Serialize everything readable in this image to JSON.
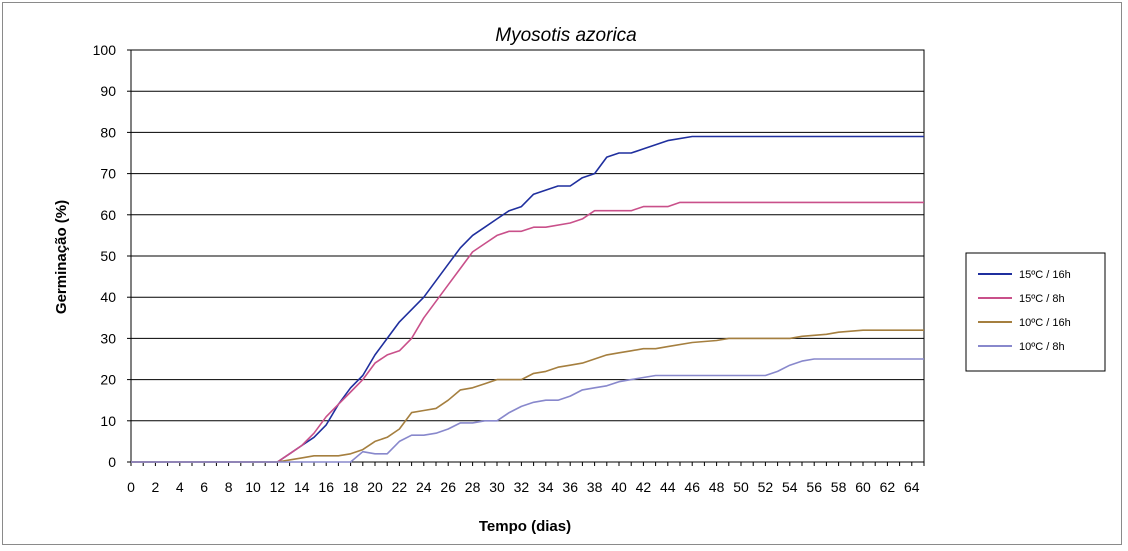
{
  "chart_data": {
    "type": "line",
    "title": "Myosotis azorica",
    "xlabel": "Tempo (dias)",
    "ylabel": "Germinação (%)",
    "xlim": [
      0,
      65
    ],
    "ylim": [
      0,
      100
    ],
    "yticks": [
      0,
      10,
      20,
      30,
      40,
      50,
      60,
      70,
      80,
      90,
      100
    ],
    "xticks": [
      0,
      2,
      4,
      6,
      8,
      10,
      12,
      14,
      16,
      18,
      20,
      22,
      24,
      26,
      28,
      30,
      32,
      34,
      36,
      38,
      40,
      42,
      44,
      46,
      48,
      50,
      52,
      54,
      56,
      58,
      60,
      62,
      64
    ],
    "grid": "horizontal",
    "legend_position": "right",
    "series": [
      {
        "name": "15ºC / 16h",
        "color": "#1f2f9e",
        "points": [
          [
            0,
            0
          ],
          [
            11,
            0
          ],
          [
            12,
            0
          ],
          [
            13,
            2
          ],
          [
            14,
            4
          ],
          [
            15,
            6
          ],
          [
            16,
            9
          ],
          [
            17,
            14
          ],
          [
            18,
            18
          ],
          [
            19,
            21
          ],
          [
            20,
            26
          ],
          [
            21,
            30
          ],
          [
            22,
            34
          ],
          [
            23,
            37
          ],
          [
            24,
            40
          ],
          [
            25,
            44
          ],
          [
            26,
            48
          ],
          [
            27,
            52
          ],
          [
            28,
            55
          ],
          [
            29,
            57
          ],
          [
            30,
            59
          ],
          [
            31,
            61
          ],
          [
            32,
            62
          ],
          [
            33,
            65
          ],
          [
            34,
            66
          ],
          [
            35,
            67
          ],
          [
            36,
            67
          ],
          [
            37,
            69
          ],
          [
            38,
            70
          ],
          [
            39,
            74
          ],
          [
            40,
            75
          ],
          [
            41,
            75
          ],
          [
            42,
            76
          ],
          [
            44,
            78
          ],
          [
            46,
            79
          ],
          [
            48,
            79
          ],
          [
            50,
            79
          ],
          [
            60,
            79
          ],
          [
            65,
            79
          ]
        ]
      },
      {
        "name": "15ºC / 8h",
        "color": "#c9508a",
        "points": [
          [
            0,
            0
          ],
          [
            12,
            0
          ],
          [
            13,
            2
          ],
          [
            14,
            4
          ],
          [
            15,
            7
          ],
          [
            16,
            11
          ],
          [
            17,
            14
          ],
          [
            18,
            17
          ],
          [
            19,
            20
          ],
          [
            20,
            24
          ],
          [
            21,
            26
          ],
          [
            22,
            27
          ],
          [
            23,
            30
          ],
          [
            24,
            35
          ],
          [
            25,
            39
          ],
          [
            26,
            43
          ],
          [
            27,
            47
          ],
          [
            28,
            51
          ],
          [
            29,
            53
          ],
          [
            30,
            55
          ],
          [
            31,
            56
          ],
          [
            32,
            56
          ],
          [
            33,
            57
          ],
          [
            34,
            57
          ],
          [
            36,
            58
          ],
          [
            37,
            59
          ],
          [
            38,
            61
          ],
          [
            40,
            61
          ],
          [
            41,
            61
          ],
          [
            42,
            62
          ],
          [
            44,
            62
          ],
          [
            45,
            63
          ],
          [
            47,
            63
          ],
          [
            48,
            63
          ],
          [
            49,
            63
          ],
          [
            50,
            63
          ],
          [
            60,
            63
          ],
          [
            65,
            63
          ]
        ]
      },
      {
        "name": "10ºC / 16h",
        "color": "#a57f3f",
        "points": [
          [
            0,
            0
          ],
          [
            12,
            0
          ],
          [
            13,
            0.5
          ],
          [
            14,
            1
          ],
          [
            15,
            1.5
          ],
          [
            17,
            1.5
          ],
          [
            18,
            2
          ],
          [
            19,
            3
          ],
          [
            20,
            5
          ],
          [
            21,
            6
          ],
          [
            22,
            8
          ],
          [
            23,
            12
          ],
          [
            24,
            12.5
          ],
          [
            25,
            13
          ],
          [
            26,
            15
          ],
          [
            27,
            17.5
          ],
          [
            28,
            18
          ],
          [
            29,
            19
          ],
          [
            30,
            20
          ],
          [
            32,
            20
          ],
          [
            33,
            21.5
          ],
          [
            34,
            22
          ],
          [
            35,
            23
          ],
          [
            36,
            23.5
          ],
          [
            37,
            24
          ],
          [
            38,
            25
          ],
          [
            39,
            26
          ],
          [
            40,
            26.5
          ],
          [
            41,
            27
          ],
          [
            42,
            27.5
          ],
          [
            43,
            27.5
          ],
          [
            44,
            28
          ],
          [
            46,
            29
          ],
          [
            48,
            29.5
          ],
          [
            49,
            30
          ],
          [
            50,
            30
          ],
          [
            54,
            30
          ],
          [
            55,
            30.5
          ],
          [
            57,
            31
          ],
          [
            58,
            31.5
          ],
          [
            60,
            32
          ],
          [
            65,
            32
          ]
        ]
      },
      {
        "name": "10ºC / 8h",
        "color": "#8888cc",
        "points": [
          [
            0,
            0
          ],
          [
            18,
            0
          ],
          [
            19,
            2.5
          ],
          [
            20,
            2
          ],
          [
            21,
            2
          ],
          [
            22,
            5
          ],
          [
            23,
            6.5
          ],
          [
            24,
            6.5
          ],
          [
            25,
            7
          ],
          [
            26,
            8
          ],
          [
            27,
            9.5
          ],
          [
            28,
            9.5
          ],
          [
            29,
            10
          ],
          [
            30,
            10
          ],
          [
            31,
            12
          ],
          [
            32,
            13.5
          ],
          [
            33,
            14.5
          ],
          [
            34,
            15
          ],
          [
            35,
            15
          ],
          [
            36,
            16
          ],
          [
            37,
            17.5
          ],
          [
            38,
            18
          ],
          [
            39,
            18.5
          ],
          [
            40,
            19.5
          ],
          [
            41,
            20
          ],
          [
            42,
            20.5
          ],
          [
            43,
            21
          ],
          [
            45,
            21
          ],
          [
            50,
            21
          ],
          [
            52,
            21
          ],
          [
            53,
            22
          ],
          [
            54,
            23.5
          ],
          [
            55,
            24.5
          ],
          [
            56,
            25
          ],
          [
            60,
            25
          ],
          [
            65,
            25
          ]
        ]
      }
    ]
  }
}
